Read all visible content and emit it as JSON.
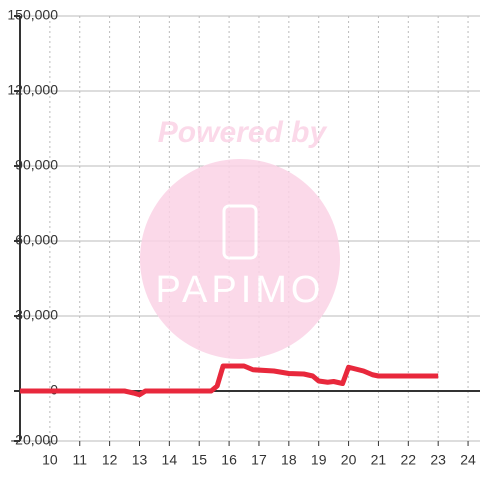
{
  "chart_data": {
    "type": "line",
    "watermark": {
      "top": "Powered by",
      "brand": "PAPIMO"
    },
    "x": [
      9,
      12.5,
      12.8,
      13,
      13.2,
      15.2,
      15.4,
      15.6,
      15.8,
      16.5,
      16.8,
      17.5,
      18,
      18.5,
      18.8,
      19,
      19.3,
      19.5,
      19.8,
      20,
      20.5,
      20.8,
      21,
      22,
      23
    ],
    "series": [
      {
        "name": "value",
        "color": "#e8283c",
        "values": [
          0,
          0,
          -800,
          -1500,
          0,
          0,
          0,
          2000,
          10000,
          10000,
          8500,
          8000,
          7000,
          6800,
          6000,
          4000,
          3500,
          3800,
          3000,
          9500,
          8000,
          6500,
          6000,
          6000,
          6000
        ]
      }
    ],
    "xlim": [
      9,
      24.4
    ],
    "xticks": [
      10,
      11,
      12,
      13,
      14,
      15,
      16,
      17,
      18,
      19,
      20,
      21,
      22,
      23,
      24
    ],
    "ylim": [
      -20000,
      150000
    ],
    "yticks": [
      {
        "value": -20000,
        "label": "-20,000"
      },
      0,
      {
        "value": 30000,
        "label": "30,000"
      },
      {
        "value": 60000,
        "label": "60,000"
      },
      {
        "value": 90000,
        "label": "90,000"
      },
      {
        "value": 120000,
        "label": "120,000"
      },
      {
        "value": 150000,
        "label": "150,000"
      }
    ],
    "grid": true
  }
}
